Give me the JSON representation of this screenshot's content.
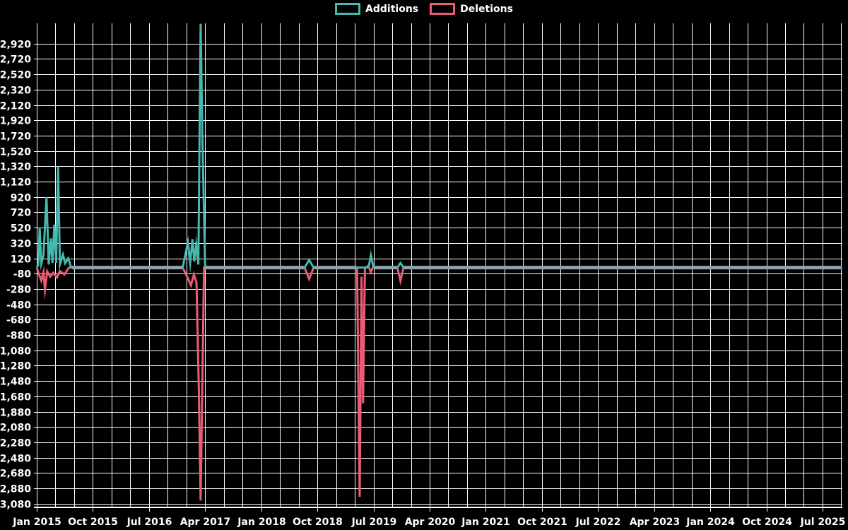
{
  "page": {
    "background": "#000000",
    "text_color": "#ffffff"
  },
  "legend": {
    "items": [
      {
        "label": "Additions",
        "color": "#46b8ae"
      },
      {
        "label": "Deletions",
        "color": "#ea5c74"
      }
    ]
  },
  "chart_data": {
    "type": "line",
    "title": "",
    "xlabel": "",
    "ylabel": "",
    "x_unit": "decimal_year",
    "xlim": [
      2015.0,
      2025.76
    ],
    "ylim": [
      -3130,
      3190
    ],
    "grid": true,
    "grid_color": "#ffffff",
    "background": "#000000",
    "legend_position": "top-center",
    "x_minor_step_years": 0.25,
    "y_ticks": [
      {
        "value": 2920,
        "label": "2,920"
      },
      {
        "value": 2720,
        "label": "2,720"
      },
      {
        "value": 2520,
        "label": "2,520"
      },
      {
        "value": 2320,
        "label": "2,320"
      },
      {
        "value": 2120,
        "label": "2,120"
      },
      {
        "value": 1920,
        "label": "1,920"
      },
      {
        "value": 1720,
        "label": "1,720"
      },
      {
        "value": 1520,
        "label": "1,520"
      },
      {
        "value": 1320,
        "label": "1,320"
      },
      {
        "value": 1120,
        "label": "1,120"
      },
      {
        "value": 920,
        "label": "920"
      },
      {
        "value": 720,
        "label": "720"
      },
      {
        "value": 520,
        "label": "520"
      },
      {
        "value": 320,
        "label": "320"
      },
      {
        "value": 120,
        "label": "120"
      },
      {
        "value": -80,
        "label": "-80"
      },
      {
        "value": -280,
        "label": "-280"
      },
      {
        "value": -480,
        "label": "-480"
      },
      {
        "value": -680,
        "label": "-680"
      },
      {
        "value": -880,
        "label": "-880"
      },
      {
        "value": -1080,
        "label": "-1,080"
      },
      {
        "value": -1280,
        "label": "-1,280"
      },
      {
        "value": -1480,
        "label": "-1,480"
      },
      {
        "value": -1680,
        "label": "-1,680"
      },
      {
        "value": -1880,
        "label": "-1,880"
      },
      {
        "value": -2080,
        "label": "-2,080"
      },
      {
        "value": -2280,
        "label": "-2,280"
      },
      {
        "value": -2480,
        "label": "-2,480"
      },
      {
        "value": -2680,
        "label": "-2,680"
      },
      {
        "value": -2880,
        "label": "-2,880"
      },
      {
        "value": -3080,
        "label": "-3,080"
      }
    ],
    "x_ticks": [
      {
        "value": 2015.0,
        "label": "Jan 2015"
      },
      {
        "value": 2015.75,
        "label": "Oct 2015"
      },
      {
        "value": 2016.5,
        "label": "Jul 2016"
      },
      {
        "value": 2017.25,
        "label": "Apr 2017"
      },
      {
        "value": 2018.0,
        "label": "Jan 2018"
      },
      {
        "value": 2018.75,
        "label": "Oct 2018"
      },
      {
        "value": 2019.5,
        "label": "Jul 2019"
      },
      {
        "value": 2020.25,
        "label": "Apr 2020"
      },
      {
        "value": 2021.0,
        "label": "Jan 2021"
      },
      {
        "value": 2021.75,
        "label": "Oct 2021"
      },
      {
        "value": 2022.5,
        "label": "Jul 2022"
      },
      {
        "value": 2023.25,
        "label": "Apr 2023"
      },
      {
        "value": 2024.0,
        "label": "Jan 2024"
      },
      {
        "value": 2024.75,
        "label": "Oct 2024"
      },
      {
        "value": 2025.5,
        "label": "Jul 2025"
      }
    ],
    "series": [
      {
        "name": "Additions",
        "color": "#46b8ae",
        "points": [
          [
            2015.0,
            0
          ],
          [
            2015.02,
            30
          ],
          [
            2015.04,
            520
          ],
          [
            2015.06,
            50
          ],
          [
            2015.09,
            160
          ],
          [
            2015.13,
            920
          ],
          [
            2015.16,
            40
          ],
          [
            2015.19,
            380
          ],
          [
            2015.21,
            60
          ],
          [
            2015.235,
            560
          ],
          [
            2015.26,
            60
          ],
          [
            2015.285,
            1320
          ],
          [
            2015.31,
            40
          ],
          [
            2015.35,
            170
          ],
          [
            2015.38,
            55
          ],
          [
            2015.42,
            120
          ],
          [
            2015.46,
            0
          ],
          [
            2016.95,
            0
          ],
          [
            2017.02,
            330
          ],
          [
            2017.05,
            60
          ],
          [
            2017.08,
            370
          ],
          [
            2017.105,
            80
          ],
          [
            2017.13,
            300
          ],
          [
            2017.16,
            40
          ],
          [
            2017.19,
            3180
          ],
          [
            2017.215,
            1600
          ],
          [
            2017.25,
            0
          ],
          [
            2018.58,
            0
          ],
          [
            2018.64,
            100
          ],
          [
            2018.7,
            0
          ],
          [
            2019.4,
            0
          ],
          [
            2019.44,
            30
          ],
          [
            2019.465,
            160
          ],
          [
            2019.5,
            0
          ],
          [
            2019.82,
            0
          ],
          [
            2019.86,
            60
          ],
          [
            2019.9,
            0
          ],
          [
            2025.76,
            0
          ]
        ]
      },
      {
        "name": "Deletions",
        "color": "#ea5c74",
        "points": [
          [
            2015.0,
            0
          ],
          [
            2015.03,
            -90
          ],
          [
            2015.06,
            -170
          ],
          [
            2015.09,
            -60
          ],
          [
            2015.11,
            -290
          ],
          [
            2015.14,
            -50
          ],
          [
            2015.18,
            -120
          ],
          [
            2015.22,
            -70
          ],
          [
            2015.27,
            -130
          ],
          [
            2015.31,
            -45
          ],
          [
            2015.37,
            -90
          ],
          [
            2015.43,
            0
          ],
          [
            2016.95,
            0
          ],
          [
            2017.02,
            -140
          ],
          [
            2017.06,
            -230
          ],
          [
            2017.1,
            -90
          ],
          [
            2017.135,
            -200
          ],
          [
            2017.165,
            -1560
          ],
          [
            2017.19,
            -3040
          ],
          [
            2017.235,
            0
          ],
          [
            2018.58,
            0
          ],
          [
            2018.64,
            -150
          ],
          [
            2018.7,
            0
          ],
          [
            2019.28,
            0
          ],
          [
            2019.315,
            -2990
          ],
          [
            2019.34,
            -120
          ],
          [
            2019.36,
            -1770
          ],
          [
            2019.385,
            0
          ],
          [
            2019.44,
            0
          ],
          [
            2019.465,
            -60
          ],
          [
            2019.49,
            0
          ],
          [
            2019.82,
            0
          ],
          [
            2019.86,
            -175
          ],
          [
            2019.9,
            0
          ],
          [
            2025.76,
            0
          ]
        ]
      }
    ],
    "zero_line": {
      "color": "#8fa3ad",
      "runs": [
        [
          2015.47,
          2016.94
        ],
        [
          2017.26,
          2018.57
        ],
        [
          2018.71,
          2019.27
        ],
        [
          2019.51,
          2019.81
        ],
        [
          2019.91,
          2025.76
        ]
      ]
    }
  }
}
